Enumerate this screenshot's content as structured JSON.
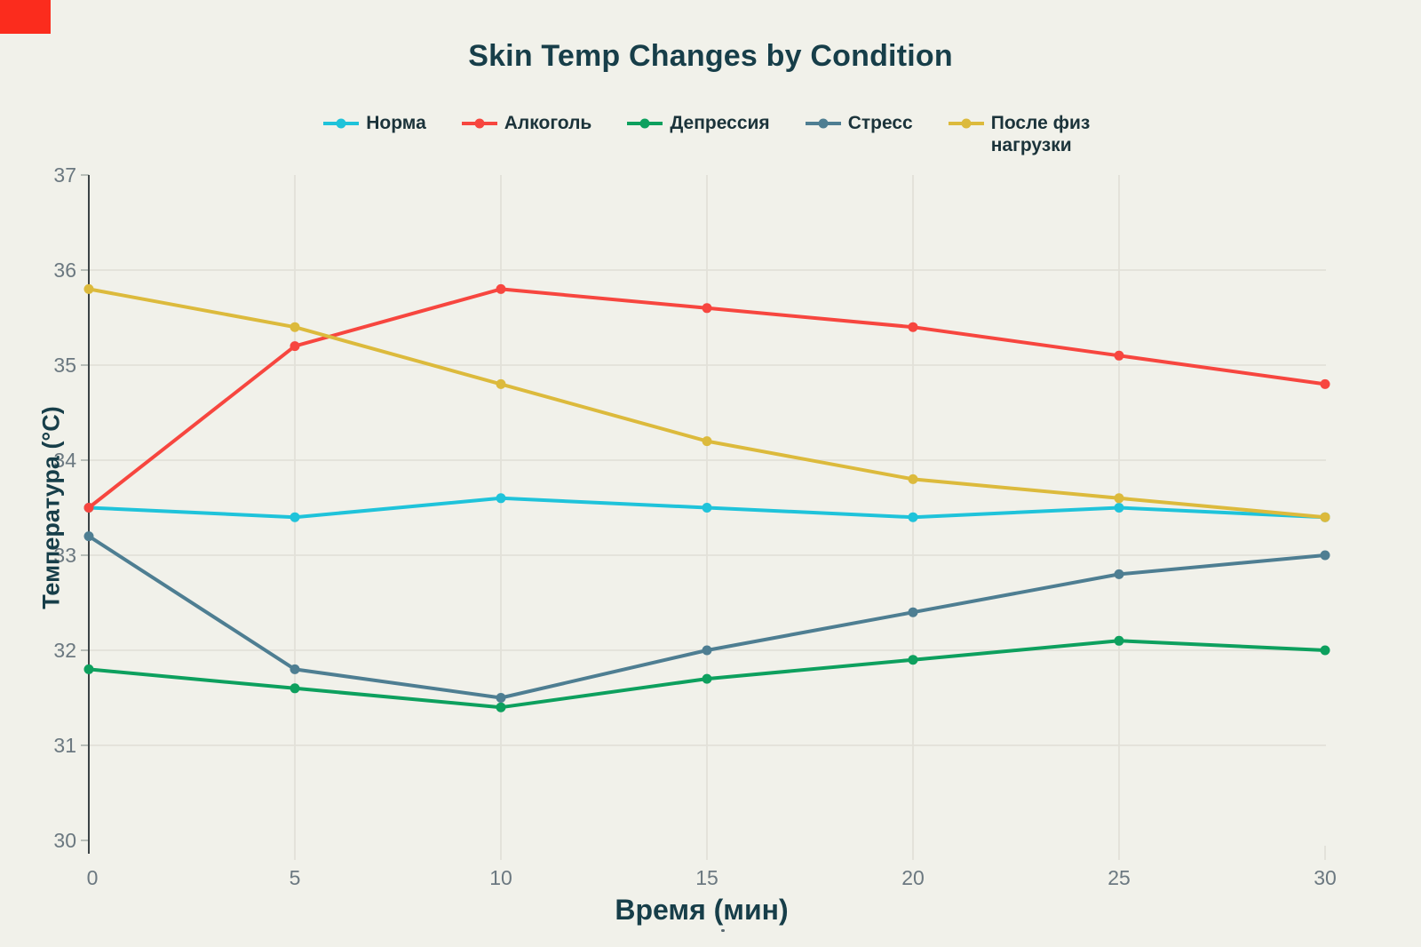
{
  "page": {
    "background_color": "#f1f1ea",
    "corner_marker_color": "#fb2c1d"
  },
  "chart_data": {
    "type": "line",
    "title": "Skin Temp Changes by Condition",
    "xlabel": "Время (мин)",
    "ylabel": "Температура (°C)",
    "x": [
      0,
      5,
      10,
      15,
      20,
      25,
      30
    ],
    "xticks": [
      "0",
      "5",
      "10",
      "15",
      "20",
      "25",
      "30"
    ],
    "yticks": [
      "30",
      "31",
      "32",
      "33",
      "34",
      "35",
      "36",
      "37"
    ],
    "xlim": [
      0,
      30
    ],
    "ylim": [
      30,
      37
    ],
    "grid": true,
    "legend_position": "top",
    "series": [
      {
        "name": "Норма",
        "color": "#1fc3da",
        "values": [
          33.5,
          33.4,
          33.6,
          33.5,
          33.4,
          33.5,
          33.4
        ]
      },
      {
        "name": "Алкоголь",
        "color": "#f7463f",
        "values": [
          33.5,
          35.2,
          35.8,
          35.6,
          35.4,
          35.1,
          34.8
        ]
      },
      {
        "name": "Депрессия",
        "color": "#0da05e",
        "values": [
          31.8,
          31.6,
          31.4,
          31.7,
          31.9,
          32.1,
          32.0
        ]
      },
      {
        "name": "Стресс",
        "color": "#4e7e92",
        "values": [
          33.2,
          31.8,
          31.5,
          32.0,
          32.4,
          32.8,
          33.0
        ]
      },
      {
        "name": "После физ нагрузки",
        "color": "#dcba3c",
        "values": [
          35.8,
          35.4,
          34.8,
          34.2,
          33.8,
          33.6,
          33.4
        ]
      }
    ],
    "colors": {
      "title_text": "#173e49",
      "axis_label_text": "#173e49",
      "legend_text": "#1b333a",
      "tick_text": "#6b7880",
      "gridline": "#e2e1d9",
      "axis_line": "#3c4346"
    }
  }
}
